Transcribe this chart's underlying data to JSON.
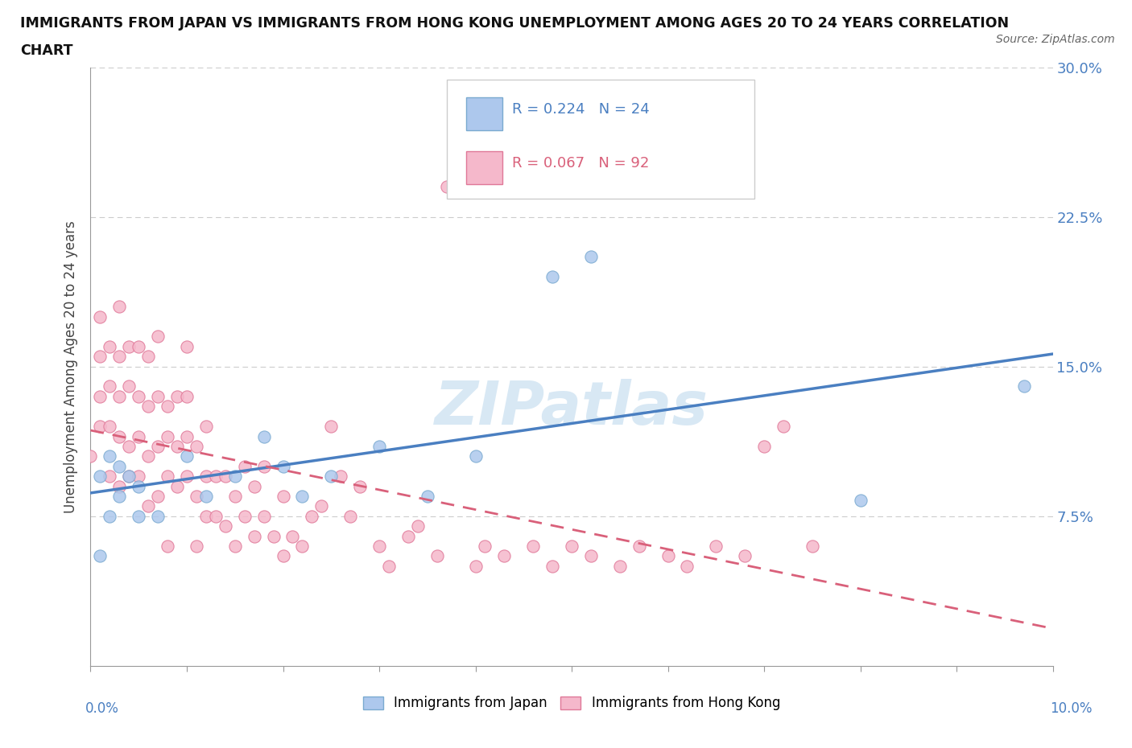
{
  "title_line1": "IMMIGRANTS FROM JAPAN VS IMMIGRANTS FROM HONG KONG UNEMPLOYMENT AMONG AGES 20 TO 24 YEARS CORRELATION",
  "title_line2": "CHART",
  "source": "Source: ZipAtlas.com",
  "ylabel": "Unemployment Among Ages 20 to 24 years",
  "xlim": [
    0.0,
    0.1
  ],
  "ylim": [
    0.0,
    0.3
  ],
  "yticks": [
    0.0,
    0.075,
    0.15,
    0.225,
    0.3
  ],
  "ytick_labels": [
    "",
    "7.5%",
    "15.0%",
    "22.5%",
    "30.0%"
  ],
  "watermark": "ZIPatlas",
  "japan_color": "#adc8ed",
  "japan_edge": "#7aaad0",
  "hk_color": "#f5b8cb",
  "hk_edge": "#e07898",
  "japan_line_color": "#4a7fc1",
  "hk_line_color": "#d9607a",
  "japan_R": 0.224,
  "japan_N": 24,
  "hk_R": 0.067,
  "hk_N": 92,
  "japan_x": [
    0.001,
    0.001,
    0.002,
    0.002,
    0.003,
    0.003,
    0.004,
    0.005,
    0.005,
    0.007,
    0.01,
    0.012,
    0.015,
    0.018,
    0.02,
    0.022,
    0.025,
    0.03,
    0.035,
    0.04,
    0.048,
    0.052,
    0.08,
    0.097
  ],
  "japan_y": [
    0.055,
    0.095,
    0.075,
    0.105,
    0.085,
    0.1,
    0.095,
    0.075,
    0.09,
    0.075,
    0.105,
    0.085,
    0.095,
    0.115,
    0.1,
    0.085,
    0.095,
    0.11,
    0.085,
    0.105,
    0.195,
    0.205,
    0.083,
    0.14
  ],
  "hk_x": [
    0.0,
    0.001,
    0.001,
    0.001,
    0.001,
    0.002,
    0.002,
    0.002,
    0.002,
    0.003,
    0.003,
    0.003,
    0.003,
    0.003,
    0.004,
    0.004,
    0.004,
    0.004,
    0.005,
    0.005,
    0.005,
    0.005,
    0.006,
    0.006,
    0.006,
    0.006,
    0.007,
    0.007,
    0.007,
    0.007,
    0.008,
    0.008,
    0.008,
    0.008,
    0.009,
    0.009,
    0.009,
    0.01,
    0.01,
    0.01,
    0.01,
    0.011,
    0.011,
    0.011,
    0.012,
    0.012,
    0.012,
    0.013,
    0.013,
    0.014,
    0.014,
    0.015,
    0.015,
    0.016,
    0.016,
    0.017,
    0.017,
    0.018,
    0.018,
    0.019,
    0.02,
    0.02,
    0.021,
    0.022,
    0.023,
    0.024,
    0.025,
    0.026,
    0.027,
    0.028,
    0.03,
    0.031,
    0.033,
    0.034,
    0.036,
    0.037,
    0.04,
    0.041,
    0.043,
    0.046,
    0.048,
    0.05,
    0.052,
    0.055,
    0.057,
    0.06,
    0.062,
    0.065,
    0.068,
    0.07,
    0.072,
    0.075
  ],
  "hk_y": [
    0.105,
    0.135,
    0.12,
    0.155,
    0.175,
    0.095,
    0.14,
    0.12,
    0.16,
    0.155,
    0.135,
    0.115,
    0.09,
    0.18,
    0.11,
    0.095,
    0.14,
    0.16,
    0.095,
    0.115,
    0.135,
    0.16,
    0.08,
    0.105,
    0.13,
    0.155,
    0.085,
    0.11,
    0.135,
    0.165,
    0.095,
    0.115,
    0.13,
    0.06,
    0.09,
    0.11,
    0.135,
    0.095,
    0.115,
    0.135,
    0.16,
    0.06,
    0.085,
    0.11,
    0.075,
    0.095,
    0.12,
    0.075,
    0.095,
    0.07,
    0.095,
    0.06,
    0.085,
    0.075,
    0.1,
    0.065,
    0.09,
    0.075,
    0.1,
    0.065,
    0.055,
    0.085,
    0.065,
    0.06,
    0.075,
    0.08,
    0.12,
    0.095,
    0.075,
    0.09,
    0.06,
    0.05,
    0.065,
    0.07,
    0.055,
    0.24,
    0.05,
    0.06,
    0.055,
    0.06,
    0.05,
    0.06,
    0.055,
    0.05,
    0.06,
    0.055,
    0.05,
    0.06,
    0.055,
    0.11,
    0.12,
    0.06
  ]
}
